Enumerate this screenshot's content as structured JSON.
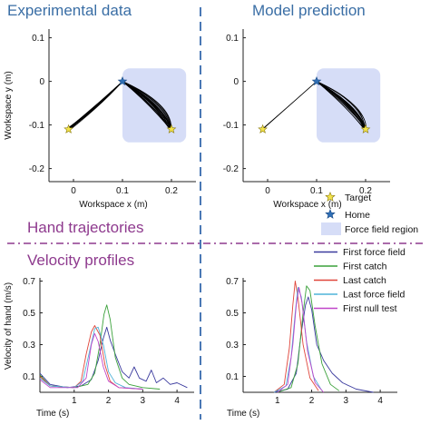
{
  "titles": {
    "experimental": "Experimental data",
    "model": "Model prediction",
    "hand_trajectories": "Hand trajectories",
    "velocity_profiles": "Velocity profiles"
  },
  "colors": {
    "title": "#3a6ea5",
    "section": "#8e3a8e",
    "force_field_region": "#d6ddf7",
    "divider": "#4a78b5",
    "target_star": "#f2e24a",
    "home_star": "#2f6fb5"
  },
  "legend_markers": [
    {
      "icon": "star-icon",
      "label": "Target",
      "color": "#f2e24a"
    },
    {
      "icon": "star-icon",
      "label": "Home",
      "color": "#2f6fb5"
    },
    {
      "icon": "square-icon",
      "label": "Force field region",
      "color": "#d6ddf7"
    }
  ],
  "legend_lines": [
    {
      "label": "First force field",
      "color": "#3b3b9e"
    },
    {
      "label": "First catch",
      "color": "#3aa13a"
    },
    {
      "label": "Last catch",
      "color": "#e0453a"
    },
    {
      "label": "Last force field",
      "color": "#4fb3d8"
    },
    {
      "label": "First null test",
      "color": "#c046c9"
    }
  ],
  "chart_data": [
    {
      "id": "exp-traj",
      "type": "line",
      "title": "Experimental data",
      "xlabel": "Workspace x (m)",
      "ylabel": "Workspace y (m)",
      "xlim": [
        -0.05,
        0.25
      ],
      "ylim": [
        -0.23,
        0.12
      ],
      "xticks": [
        "0",
        "0.1",
        "0.2"
      ],
      "yticks": [
        "0.1",
        "0",
        "-0.1",
        "-0.2"
      ],
      "grid": false,
      "force_field_region": {
        "x": [
          0.1,
          0.23
        ],
        "y": [
          -0.14,
          0.03
        ]
      },
      "home": [
        0.1,
        0.0
      ],
      "targets": [
        [
          -0.01,
          -0.11
        ],
        [
          0.2,
          -0.11
        ]
      ],
      "trajectory_sets": [
        {
          "to": [
            -0.01,
            -0.11
          ],
          "n": 14,
          "bulge": 0.012
        },
        {
          "to": [
            0.2,
            -0.11
          ],
          "n": 22,
          "bulge": 0.05
        }
      ]
    },
    {
      "id": "model-traj",
      "type": "line",
      "title": "Model prediction",
      "xlabel": "Workspace x (m)",
      "ylabel": "",
      "xlim": [
        -0.05,
        0.25
      ],
      "ylim": [
        -0.23,
        0.12
      ],
      "xticks": [
        "0",
        "0.1",
        "0.2"
      ],
      "yticks": [
        "0.1",
        "0",
        "-0.1",
        "-0.2"
      ],
      "grid": false,
      "force_field_region": {
        "x": [
          0.1,
          0.23
        ],
        "y": [
          -0.14,
          0.03
        ]
      },
      "home": [
        0.1,
        0.0
      ],
      "targets": [
        [
          -0.01,
          -0.11
        ],
        [
          0.2,
          -0.11
        ]
      ],
      "trajectory_sets": [
        {
          "to": [
            -0.01,
            -0.11
          ],
          "n": 2,
          "bulge": 0.0
        },
        {
          "to": [
            0.2,
            -0.11
          ],
          "n": 18,
          "bulge": 0.05
        }
      ]
    },
    {
      "id": "exp-vel",
      "type": "line",
      "xlabel": "Time (s)",
      "ylabel": "Velocity of hand (m/s)",
      "xlim": [
        0,
        4.5
      ],
      "ylim": [
        0,
        0.72
      ],
      "xticks": [
        1,
        2,
        3,
        4
      ],
      "yticks": [
        0.1,
        0.3,
        0.5,
        0.7
      ],
      "grid": false,
      "series": [
        {
          "name": "First force field",
          "values": [
            [
              0,
              0.12
            ],
            [
              0.3,
              0.05
            ],
            [
              0.8,
              0.03
            ],
            [
              1.2,
              0.04
            ],
            [
              1.5,
              0.08
            ],
            [
              1.7,
              0.2
            ],
            [
              1.85,
              0.34
            ],
            [
              1.95,
              0.41
            ],
            [
              2.05,
              0.33
            ],
            [
              2.2,
              0.24
            ],
            [
              2.4,
              0.13
            ],
            [
              2.6,
              0.09
            ],
            [
              2.75,
              0.16
            ],
            [
              2.9,
              0.09
            ],
            [
              3.1,
              0.07
            ],
            [
              3.25,
              0.14
            ],
            [
              3.4,
              0.06
            ],
            [
              3.6,
              0.09
            ],
            [
              3.8,
              0.05
            ],
            [
              4.0,
              0.06
            ],
            [
              4.3,
              0.03
            ]
          ]
        },
        {
          "name": "First catch",
          "values": [
            [
              0,
              0.11
            ],
            [
              0.3,
              0.04
            ],
            [
              1.0,
              0.03
            ],
            [
              1.4,
              0.05
            ],
            [
              1.6,
              0.12
            ],
            [
              1.75,
              0.3
            ],
            [
              1.87,
              0.49
            ],
            [
              1.95,
              0.55
            ],
            [
              2.05,
              0.46
            ],
            [
              2.2,
              0.22
            ],
            [
              2.4,
              0.09
            ],
            [
              2.6,
              0.05
            ],
            [
              3.0,
              0.03
            ],
            [
              3.5,
              0.02
            ]
          ]
        },
        {
          "name": "Last catch",
          "values": [
            [
              0,
              0.1
            ],
            [
              0.3,
              0.04
            ],
            [
              1.0,
              0.03
            ],
            [
              1.2,
              0.07
            ],
            [
              1.35,
              0.24
            ],
            [
              1.5,
              0.38
            ],
            [
              1.6,
              0.42
            ],
            [
              1.75,
              0.36
            ],
            [
              1.9,
              0.17
            ],
            [
              2.05,
              0.07
            ],
            [
              2.3,
              0.03
            ],
            [
              3.0,
              0.02
            ]
          ]
        },
        {
          "name": "Last force field",
          "values": [
            [
              0,
              0.09
            ],
            [
              0.3,
              0.04
            ],
            [
              1.0,
              0.03
            ],
            [
              1.25,
              0.07
            ],
            [
              1.45,
              0.26
            ],
            [
              1.6,
              0.4
            ],
            [
              1.7,
              0.41
            ],
            [
              1.85,
              0.3
            ],
            [
              2.0,
              0.13
            ],
            [
              2.2,
              0.06
            ],
            [
              2.5,
              0.03
            ],
            [
              3.0,
              0.02
            ]
          ]
        },
        {
          "name": "First null test",
          "values": [
            [
              0,
              0.08
            ],
            [
              0.3,
              0.03
            ],
            [
              1.1,
              0.03
            ],
            [
              1.35,
              0.09
            ],
            [
              1.5,
              0.3
            ],
            [
              1.6,
              0.37
            ],
            [
              1.7,
              0.32
            ],
            [
              1.85,
              0.16
            ],
            [
              2.0,
              0.07
            ],
            [
              2.3,
              0.03
            ],
            [
              3.0,
              0.02
            ]
          ]
        }
      ]
    },
    {
      "id": "model-vel",
      "type": "line",
      "xlabel": "Time (s)",
      "ylabel": "",
      "xlim": [
        0,
        4.5
      ],
      "ylim": [
        0,
        0.72
      ],
      "xticks": [
        1,
        2,
        3,
        4
      ],
      "yticks": [
        0.1,
        0.3,
        0.5,
        0.7
      ],
      "grid": false,
      "series": [
        {
          "name": "First force field",
          "values": [
            [
              0.9,
              0.0
            ],
            [
              1.3,
              0.02
            ],
            [
              1.55,
              0.12
            ],
            [
              1.7,
              0.38
            ],
            [
              1.82,
              0.55
            ],
            [
              1.9,
              0.6
            ],
            [
              2.0,
              0.52
            ],
            [
              2.15,
              0.3
            ],
            [
              2.35,
              0.2
            ],
            [
              2.6,
              0.12
            ],
            [
              2.9,
              0.06
            ],
            [
              3.3,
              0.02
            ],
            [
              3.8,
              0.0
            ]
          ]
        },
        {
          "name": "First catch",
          "values": [
            [
              1.0,
              0.0
            ],
            [
              1.4,
              0.03
            ],
            [
              1.6,
              0.18
            ],
            [
              1.75,
              0.5
            ],
            [
              1.85,
              0.67
            ],
            [
              1.95,
              0.64
            ],
            [
              2.1,
              0.42
            ],
            [
              2.3,
              0.18
            ],
            [
              2.55,
              0.05
            ],
            [
              2.8,
              0.01
            ]
          ]
        },
        {
          "name": "Last catch",
          "values": [
            [
              0.9,
              0.0
            ],
            [
              1.2,
              0.05
            ],
            [
              1.35,
              0.28
            ],
            [
              1.45,
              0.55
            ],
            [
              1.52,
              0.7
            ],
            [
              1.6,
              0.6
            ],
            [
              1.75,
              0.3
            ],
            [
              1.95,
              0.09
            ],
            [
              2.2,
              0.01
            ]
          ]
        },
        {
          "name": "Last force field",
          "values": [
            [
              0.9,
              0.0
            ],
            [
              1.25,
              0.04
            ],
            [
              1.4,
              0.22
            ],
            [
              1.52,
              0.5
            ],
            [
              1.6,
              0.66
            ],
            [
              1.7,
              0.6
            ],
            [
              1.85,
              0.32
            ],
            [
              2.05,
              0.1
            ],
            [
              2.3,
              0.01
            ]
          ]
        },
        {
          "name": "First null test",
          "values": [
            [
              1.0,
              0.0
            ],
            [
              1.3,
              0.05
            ],
            [
              1.45,
              0.3
            ],
            [
              1.55,
              0.55
            ],
            [
              1.63,
              0.66
            ],
            [
              1.72,
              0.56
            ],
            [
              1.88,
              0.26
            ],
            [
              2.1,
              0.06
            ],
            [
              2.35,
              0.0
            ]
          ]
        }
      ]
    }
  ]
}
